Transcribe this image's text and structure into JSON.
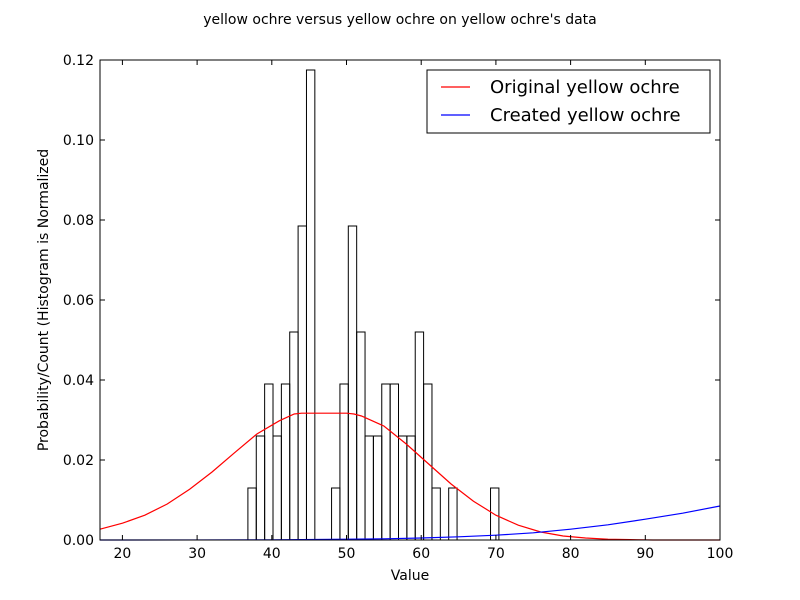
{
  "chart_data": {
    "type": "bar",
    "title": "yellow ochre versus yellow ochre on yellow ochre's data",
    "xlabel": "Value",
    "ylabel": "Probability/Count (Histogram is Normalized",
    "xlim": [
      17,
      100
    ],
    "ylim": [
      0,
      0.12
    ],
    "xticks": [
      20,
      30,
      40,
      50,
      60,
      70,
      80,
      90,
      100
    ],
    "yticks": [
      "0.00",
      "0.02",
      "0.04",
      "0.06",
      "0.08",
      "0.10",
      "0.12"
    ],
    "grid": false,
    "legend_position": "top-right",
    "histogram": {
      "bin_width": 1.12,
      "color": "#000000",
      "bins": [
        {
          "x0": 36.8,
          "value": 0.013
        },
        {
          "x0": 37.92,
          "value": 0.026
        },
        {
          "x0": 39.04,
          "value": 0.039
        },
        {
          "x0": 40.16,
          "value": 0.026
        },
        {
          "x0": 41.28,
          "value": 0.039
        },
        {
          "x0": 42.4,
          "value": 0.052
        },
        {
          "x0": 43.52,
          "value": 0.0785
        },
        {
          "x0": 44.64,
          "value": 0.1175
        },
        {
          "x0": 45.76,
          "value": 0.0
        },
        {
          "x0": 46.88,
          "value": 0.0
        },
        {
          "x0": 48.0,
          "value": 0.013
        },
        {
          "x0": 49.12,
          "value": 0.039
        },
        {
          "x0": 50.24,
          "value": 0.0785
        },
        {
          "x0": 51.36,
          "value": 0.052
        },
        {
          "x0": 52.48,
          "value": 0.026
        },
        {
          "x0": 53.6,
          "value": 0.026
        },
        {
          "x0": 54.72,
          "value": 0.039
        },
        {
          "x0": 55.84,
          "value": 0.039
        },
        {
          "x0": 56.96,
          "value": 0.026
        },
        {
          "x0": 58.08,
          "value": 0.026
        },
        {
          "x0": 59.2,
          "value": 0.052
        },
        {
          "x0": 60.32,
          "value": 0.039
        },
        {
          "x0": 61.44,
          "value": 0.013
        },
        {
          "x0": 62.56,
          "value": 0.0
        },
        {
          "x0": 63.68,
          "value": 0.013
        },
        {
          "x0": 69.28,
          "value": 0.013
        }
      ]
    },
    "series": [
      {
        "name": "Original yellow ochre",
        "color": "#ff0000",
        "x": [
          17,
          20,
          23,
          26,
          29,
          32,
          35,
          38,
          41,
          43,
          44,
          45,
          47,
          50,
          51,
          52,
          55,
          58,
          61,
          64,
          67,
          70,
          73,
          76,
          79,
          82,
          85,
          88,
          91,
          94,
          97,
          100
        ],
        "values": [
          0.0027,
          0.0042,
          0.0062,
          0.009,
          0.0127,
          0.017,
          0.0218,
          0.0265,
          0.0298,
          0.0315,
          0.0317,
          0.0317,
          0.0317,
          0.0317,
          0.0315,
          0.031,
          0.0285,
          0.024,
          0.019,
          0.014,
          0.0097,
          0.0062,
          0.0037,
          0.002,
          0.001,
          0.0005,
          0.0002,
          0.0001,
          0.0,
          0.0,
          0.0,
          0.0
        ]
      },
      {
        "name": "Created yellow ochre",
        "color": "#0000ff",
        "x": [
          17,
          30,
          40,
          50,
          55,
          60,
          65,
          70,
          75,
          80,
          85,
          90,
          95,
          100
        ],
        "values": [
          0.0,
          1e-05,
          5e-05,
          0.0002,
          0.0003,
          0.0005,
          0.0008,
          0.0012,
          0.0018,
          0.0027,
          0.0038,
          0.0052,
          0.0067,
          0.0085
        ]
      }
    ]
  }
}
